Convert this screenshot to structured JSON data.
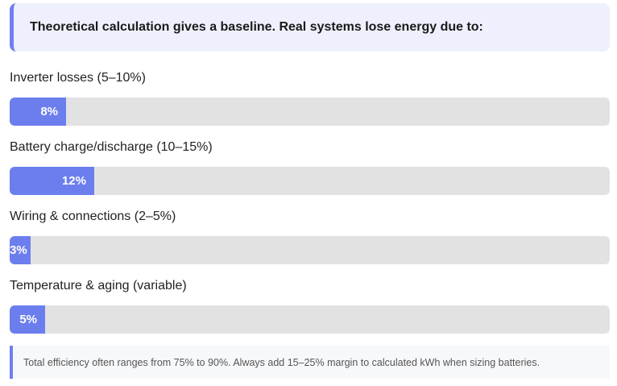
{
  "callout": {
    "text": "Theoretical calculation gives a baseline. Real systems lose energy due to:"
  },
  "losses": [
    {
      "label": "Inverter losses (5–10%)",
      "value_label": "8%",
      "value": 8
    },
    {
      "label": "Battery charge/discharge (10–15%)",
      "value_label": "12%",
      "value": 12
    },
    {
      "label": "Wiring & connections (2–5%)",
      "value_label": "3%",
      "value": 3
    },
    {
      "label": "Temperature & aging (variable)",
      "value_label": "5%",
      "value": 5
    }
  ],
  "note": {
    "text": "Total efficiency often ranges from 75% to 90%. Always add 15–25% margin to calculated kWh when sizing batteries."
  },
  "colors": {
    "accent": "#6c7eee",
    "track": "#e2e2e2",
    "callout_bg": "#eef1fd"
  }
}
